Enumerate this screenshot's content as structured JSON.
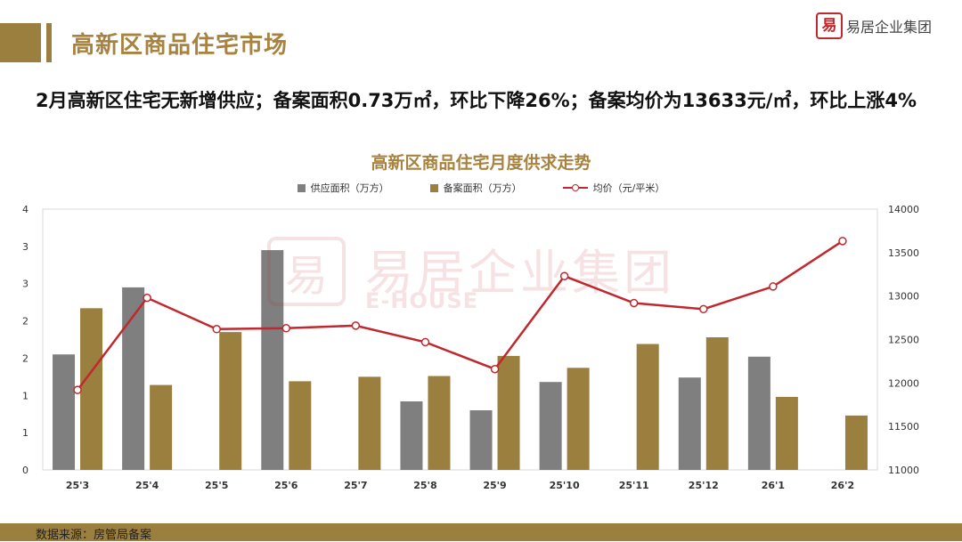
{
  "header": {
    "title": "高新区商品住宅市场",
    "logo_mark": "易",
    "logo_text": "易居企业集团"
  },
  "headline": "2月高新区住宅无新增供应；备案面积0.73万㎡，环比下降26%；备案均价为13633元/㎡，环比上涨4%",
  "watermark": {
    "main": "易居企业集团",
    "sub": "E-HOUSE"
  },
  "footer": {
    "source": "数据来源：房管局备案"
  },
  "colors": {
    "supply": "#7f7f7f",
    "filed": "#9b7f3e",
    "price": "#c0282d",
    "brand": "#a8823f"
  },
  "chart_data": {
    "type": "bar",
    "title": "高新区商品住宅月度供求走势",
    "categories": [
      "25'3",
      "25'4",
      "25'5",
      "25'6",
      "25'7",
      "25'8",
      "25'9",
      "25'10",
      "25'11",
      "25'12",
      "26'1",
      "26'2"
    ],
    "series": [
      {
        "name": "供应面积（万方）",
        "type": "bar",
        "axis": "left",
        "values": [
          1.55,
          2.45,
          0,
          2.95,
          0,
          0.92,
          0.8,
          1.18,
          0,
          1.24,
          1.52,
          0
        ]
      },
      {
        "name": "备案面积（万方）",
        "type": "bar",
        "axis": "left",
        "values": [
          2.17,
          1.14,
          1.85,
          1.19,
          1.25,
          1.26,
          1.53,
          1.37,
          1.69,
          1.78,
          0.98,
          0.73
        ]
      },
      {
        "name": "均价（元/平米）",
        "type": "line",
        "axis": "right",
        "values": [
          11920,
          12980,
          12620,
          12630,
          12660,
          12470,
          12160,
          13230,
          12920,
          12850,
          13110,
          13633
        ]
      }
    ],
    "left_axis": {
      "ylim": [
        0,
        3.5
      ],
      "tick_values": [
        0,
        0.5,
        1,
        1.5,
        2,
        2.5,
        3,
        3.5
      ],
      "tick_labels": [
        "0",
        "1",
        "1",
        "2",
        "2",
        "3",
        "3",
        "4"
      ]
    },
    "right_axis": {
      "ylim": [
        11000,
        14000
      ],
      "tick_values": [
        11000,
        11500,
        12000,
        12500,
        13000,
        13500,
        14000
      ],
      "tick_labels": [
        "11000",
        "11500",
        "12000",
        "12500",
        "13000",
        "13500",
        "14000"
      ]
    },
    "legend_position": "top",
    "grid": false
  }
}
